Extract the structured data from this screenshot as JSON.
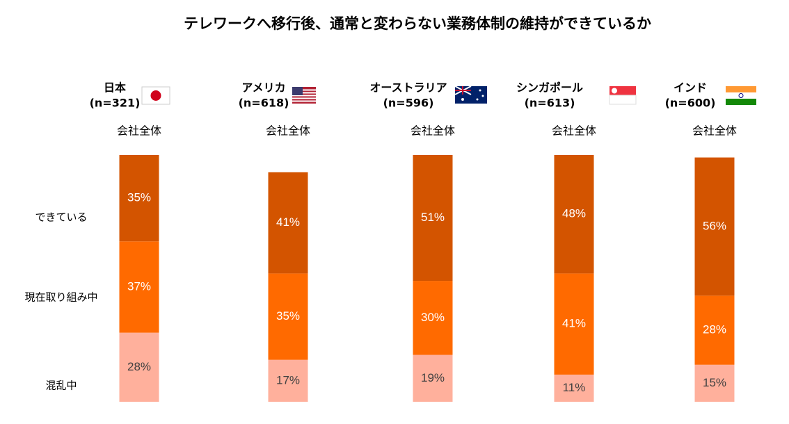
{
  "chart_data": {
    "type": "bar",
    "stacked": true,
    "title": "テレワークへ移行後、通常と変わらない業務体制の維持ができているか",
    "categories": [
      "日本",
      "アメリカ",
      "オーストラリア",
      "シンガポール",
      "インド"
    ],
    "sample_sizes": [
      "(n=321)",
      "(n=618)",
      "(n=596)",
      "(n=613)",
      "(n=600)"
    ],
    "subcategories": [
      "会社全体",
      "会社全体",
      "会社全体",
      "会社全体",
      "会社全体"
    ],
    "series": [
      {
        "name": "できている",
        "color": "#d35400",
        "label_color": "#ffffff",
        "values": [
          35,
          41,
          51,
          48,
          56
        ],
        "value_labels": [
          "35%",
          "41%",
          "51%",
          "48%",
          "56%"
        ]
      },
      {
        "name": "現在取り組み中",
        "color": "#ff6a00",
        "label_color": "#ffffff",
        "values": [
          37,
          35,
          30,
          41,
          28
        ],
        "value_labels": [
          "37%",
          "35%",
          "30%",
          "41%",
          "28%"
        ]
      },
      {
        "name": "混乱中",
        "color": "#ffb09c",
        "label_color": "#404040",
        "values": [
          28,
          17,
          19,
          11,
          15
        ],
        "value_labels": [
          "28%",
          "17%",
          "19%",
          "11%",
          "15%"
        ]
      }
    ]
  }
}
